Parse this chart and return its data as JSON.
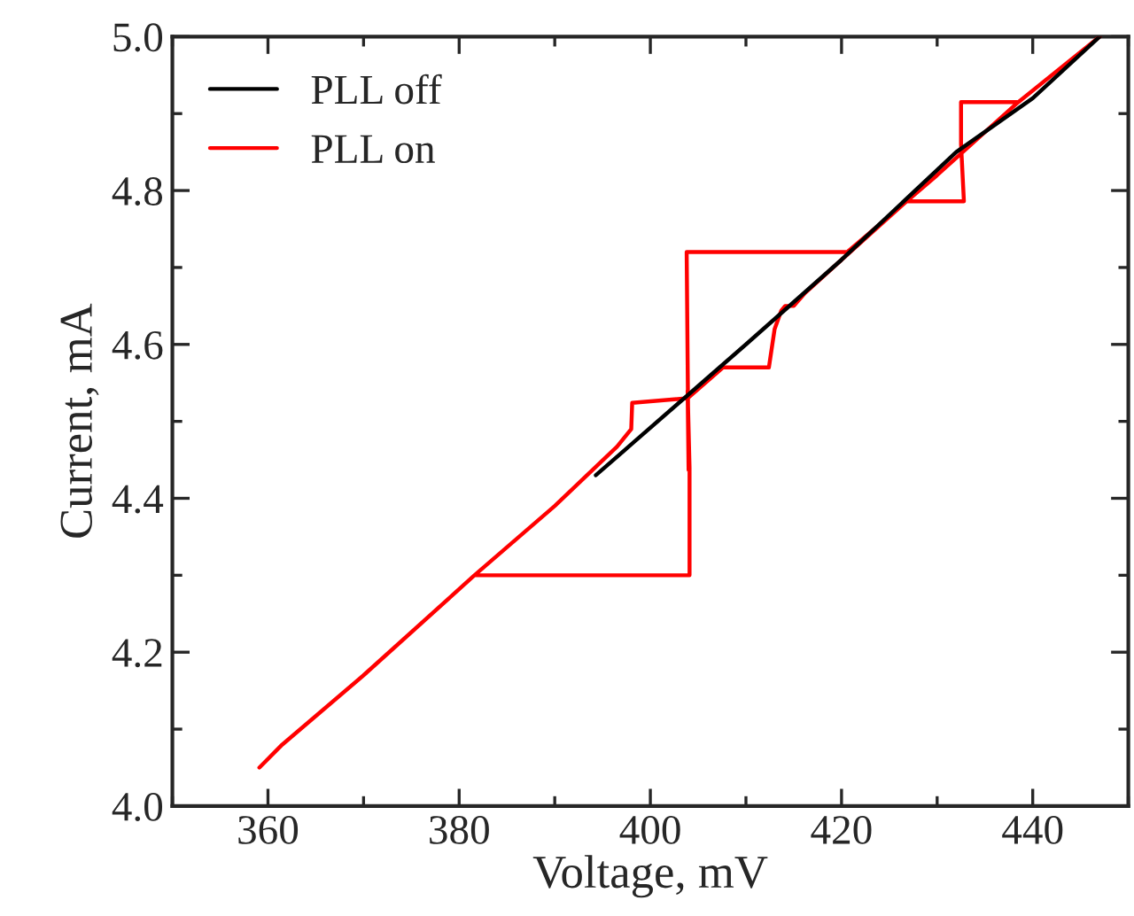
{
  "chart_data": {
    "type": "line",
    "xlabel": "Voltage, mV",
    "ylabel": "Current, mA",
    "xlim": [
      350,
      450
    ],
    "xticks": [
      360,
      380,
      400,
      420,
      440
    ],
    "ylim": [
      4.0,
      5.0
    ],
    "yticks": [
      {
        "value": 4.0,
        "label": "4.0"
      },
      {
        "value": 4.2,
        "label": "4.2"
      },
      {
        "value": 4.4,
        "label": "4.4"
      },
      {
        "value": 4.6,
        "label": "4.6"
      },
      {
        "value": 4.8,
        "label": "4.8"
      },
      {
        "value": 5.0,
        "label": "5.0"
      }
    ],
    "grid": false,
    "legend": "top left",
    "marker": "none",
    "line_style": "solid",
    "series": [
      {
        "name": "PLL off",
        "color": "#000000",
        "x": [
          394.3,
          398,
          404,
          410,
          420,
          432,
          440,
          447
        ],
        "values": [
          4.43,
          4.47,
          4.535,
          4.6,
          4.71,
          4.85,
          4.92,
          5.0
        ]
      },
      {
        "name": "PLL on",
        "color": "#ff0000",
        "x": [
          359.1,
          361.5,
          370,
          381.6,
          392,
          404.1,
          404.1,
          403.9,
          404.0,
          403.8,
          412,
          420.6,
          430,
          438.5,
          447,
          438.5,
          432.5,
          432.5,
          432.8,
          426.8,
          420,
          416.2,
          415,
          414.1,
          413.7,
          413.0,
          412.4,
          407.6,
          403.9,
          398.1,
          398.0,
          396.5,
          390,
          381.6
        ],
        "values": [
          4.05,
          4.08,
          4.17,
          4.3,
          4.3,
          4.3,
          4.44,
          4.54,
          4.437,
          4.72,
          4.72,
          4.72,
          4.82,
          4.915,
          5.0,
          4.915,
          4.915,
          4.86,
          4.786,
          4.786,
          4.71,
          4.667,
          4.65,
          4.65,
          4.644,
          4.62,
          4.57,
          4.57,
          4.53,
          4.524,
          4.49,
          4.467,
          4.39,
          4.3
        ]
      }
    ]
  }
}
